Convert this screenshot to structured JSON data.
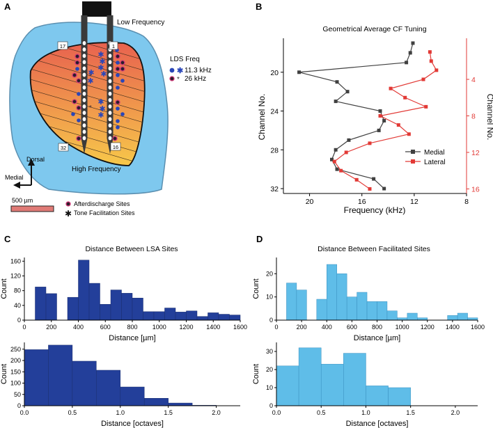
{
  "colors": {
    "tissue": "#7ec8ee",
    "tissue_edge": "#5a8fb0",
    "lsa_gradient_top": "#e8624f",
    "lsa_gradient_bottom": "#f7c84a",
    "probe": "#3a3a3a",
    "medial": "#404040",
    "lateral": "#e23a36",
    "dark_blue_bar": "#233f9a",
    "light_blue_bar": "#5fbde8",
    "blue_marker": "#2a46b8"
  },
  "panelA": {
    "label": "A",
    "top_label": "Low Frequency",
    "bottom_label": "High Frequency",
    "channel_labels": [
      "17",
      "1",
      "32",
      "16"
    ],
    "legend_title": "LDS Freq",
    "legend_items": [
      "11.3 kHz",
      "26 kHz"
    ],
    "compass_dorsal": "Dorsal",
    "compass_medial": "Medial",
    "scale_label": "500 µm",
    "site_legend": [
      "Afterdischarge Sites",
      "Tone Facilitation Sites"
    ]
  },
  "chart_data": [
    {
      "panel": "B",
      "type": "line",
      "title": "Geometrical Average CF Tuning",
      "xlabel": "Frequency (kHz)",
      "ylabel": "Channel No.",
      "ylabel_right": "Channel No.",
      "xlim": [
        22,
        8
      ],
      "xticks": [
        20,
        16,
        12,
        8
      ],
      "ylim_left": [
        16.5,
        32.5
      ],
      "yticks_left": [
        20,
        24,
        28,
        32
      ],
      "ylim_right": [
        -0.5,
        16.5
      ],
      "yticks_right": [
        4,
        8,
        12,
        16
      ],
      "series": [
        {
          "name": "Medial",
          "axis": "left",
          "y": [
            17,
            18,
            19,
            20,
            21,
            22,
            23,
            24,
            25,
            26,
            27,
            28,
            29,
            30,
            31,
            32
          ],
          "x": [
            12.1,
            12.3,
            12.6,
            20.8,
            17.9,
            17.1,
            18.0,
            14.6,
            14.3,
            14.7,
            17.0,
            18.0,
            18.3,
            17.9,
            15.1,
            14.3
          ]
        },
        {
          "name": "Lateral",
          "axis": "right",
          "y": [
            1,
            2,
            3,
            4,
            5,
            6,
            7,
            8,
            9,
            10,
            11,
            12,
            13,
            14,
            15,
            16
          ],
          "x": [
            10.8,
            10.7,
            10.3,
            11.3,
            13.8,
            12.7,
            11.1,
            14.6,
            13.2,
            12.4,
            15.4,
            17.2,
            18.1,
            17.6,
            16.4,
            15.4
          ]
        }
      ],
      "legend": [
        "Medial",
        "Lateral"
      ],
      "legend_position": "lower-right"
    },
    {
      "panel": "C",
      "type": "bar",
      "title": "Distance Between LSA Sites",
      "top": {
        "xlabel": "Distance [µm]",
        "ylabel": "Count",
        "xlim": [
          0,
          1600
        ],
        "xticks": [
          0,
          200,
          400,
          600,
          800,
          1000,
          1200,
          1400,
          1600
        ],
        "ylim": [
          0,
          170
        ],
        "yticks": [
          0,
          40,
          80,
          120,
          160
        ],
        "bin_width": 80,
        "bin_starts": [
          80,
          160,
          240,
          320,
          400,
          480,
          560,
          640,
          720,
          800,
          880,
          960,
          1040,
          1120,
          1200,
          1280,
          1360,
          1440,
          1520
        ],
        "values": [
          90,
          72,
          0,
          62,
          163,
          100,
          43,
          82,
          73,
          60,
          23,
          23,
          33,
          22,
          25,
          10,
          20,
          16,
          14
        ]
      },
      "bottom": {
        "xlabel": "Distance [octaves]",
        "ylabel": "Count",
        "xlim": [
          0,
          2.25
        ],
        "xticks": [
          0.0,
          0.5,
          1.0,
          1.5,
          2.0
        ],
        "ylim": [
          0,
          280
        ],
        "yticks": [
          0,
          50,
          100,
          150,
          200,
          250
        ],
        "bin_width": 0.25,
        "bin_starts": [
          0.0,
          0.25,
          0.5,
          0.75,
          1.0,
          1.25,
          1.5,
          1.75
        ],
        "values": [
          248,
          268,
          197,
          157,
          83,
          33,
          12,
          2
        ]
      }
    },
    {
      "panel": "D",
      "type": "bar",
      "title": "Distance Between Facilitated Sites",
      "top": {
        "xlabel": "Distance [µm]",
        "ylabel": "Count",
        "xlim": [
          0,
          1600
        ],
        "xticks": [
          0,
          200,
          400,
          600,
          800,
          1000,
          1200,
          1400,
          1600
        ],
        "ylim": [
          0,
          27
        ],
        "yticks": [
          0,
          10,
          20
        ],
        "bin_width": 80,
        "bin_starts": [
          80,
          160,
          240,
          320,
          400,
          480,
          560,
          640,
          720,
          800,
          880,
          960,
          1040,
          1120,
          1200,
          1280,
          1360,
          1440,
          1520
        ],
        "values": [
          16,
          13,
          0,
          9,
          24,
          20,
          10,
          12,
          8,
          8,
          4,
          1,
          3,
          1,
          0,
          0,
          2,
          3,
          1
        ]
      },
      "bottom": {
        "xlabel": "Distance [octaves]",
        "ylabel": "Count",
        "xlim": [
          0,
          2.25
        ],
        "xticks": [
          0.0,
          0.5,
          1.0,
          1.5,
          2.0
        ],
        "ylim": [
          0,
          35
        ],
        "yticks": [
          0,
          10,
          20,
          30
        ],
        "bin_width": 0.25,
        "bin_starts": [
          0.0,
          0.25,
          0.5,
          0.75,
          1.0,
          1.25
        ],
        "values": [
          22,
          32,
          23,
          29,
          11,
          10
        ]
      }
    }
  ],
  "panel_labels": {
    "B": "B",
    "C": "C",
    "D": "D"
  }
}
